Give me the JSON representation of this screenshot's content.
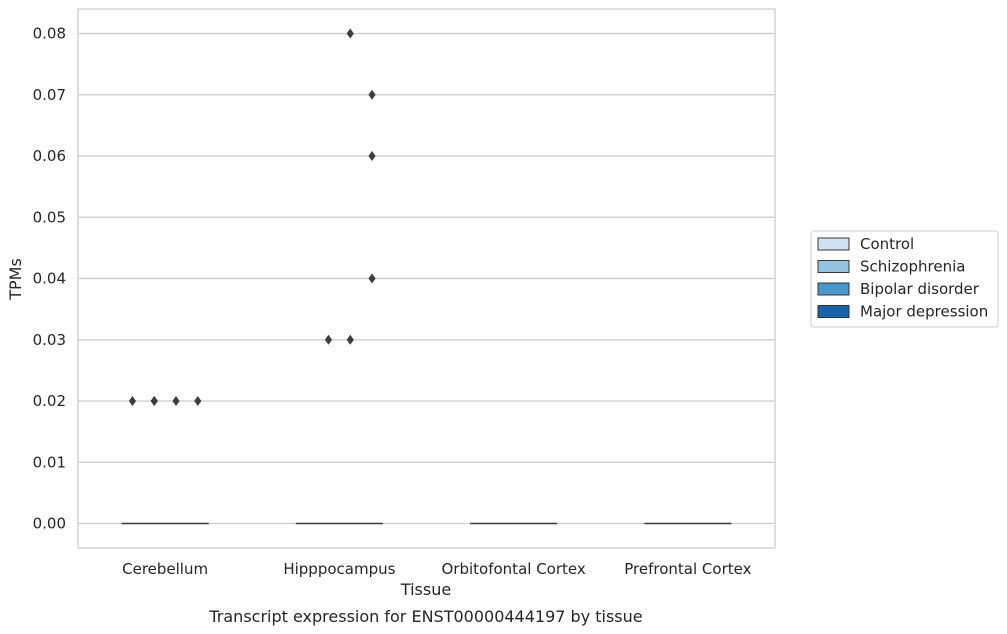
{
  "chart_data": {
    "type": "box",
    "title": "Transcript expression for ENST00000444197 by tissue",
    "xlabel": "Tissue",
    "ylabel": "TPMs",
    "categories": [
      "Cerebellum",
      "Hipppocampus",
      "Orbitofontal Cortex",
      "Prefrontal Cortex"
    ],
    "ylim": [
      -0.004,
      0.084
    ],
    "yticks": [
      0.0,
      0.01,
      0.02,
      0.03,
      0.04,
      0.05,
      0.06,
      0.07,
      0.08
    ],
    "ytick_labels": [
      "0.00",
      "0.01",
      "0.02",
      "0.03",
      "0.04",
      "0.05",
      "0.06",
      "0.07",
      "0.08"
    ],
    "grid": "horizontal",
    "legend_position": "right",
    "series": [
      {
        "name": "Control",
        "color": "#d0e1f2",
        "medians": [
          0,
          0,
          0,
          0
        ],
        "outliers": [
          [
            0.02
          ],
          [],
          [],
          []
        ]
      },
      {
        "name": "Schizophrenia",
        "color": "#94c4df",
        "medians": [
          0,
          0,
          0,
          0
        ],
        "outliers": [
          [
            0.02,
            0.02
          ],
          [
            0.03
          ],
          [],
          []
        ]
      },
      {
        "name": "Bipolar disorder",
        "color": "#4a98c9",
        "medians": [
          0,
          0,
          0,
          0
        ],
        "outliers": [
          [
            0.02
          ],
          [
            0.08,
            0.03
          ],
          [],
          []
        ]
      },
      {
        "name": "Major depression",
        "color": "#1764ab",
        "medians": [
          0,
          0,
          0,
          0
        ],
        "outliers": [
          [
            0.02
          ],
          [
            0.07,
            0.06,
            0.04
          ],
          [],
          []
        ]
      }
    ]
  }
}
